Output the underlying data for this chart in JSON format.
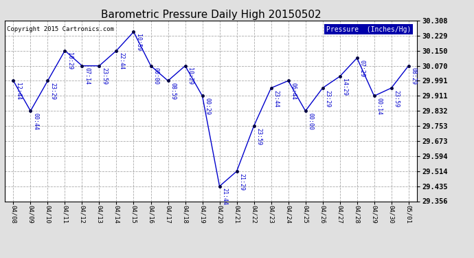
{
  "title": "Barometric Pressure Daily High 20150502",
  "copyright": "Copyright 2015 Cartronics.com",
  "legend_label": "Pressure  (Inches/Hg)",
  "dates": [
    "04/08",
    "04/09",
    "04/10",
    "04/11",
    "04/12",
    "04/13",
    "04/14",
    "04/15",
    "04/16",
    "04/17",
    "04/18",
    "04/19",
    "04/20",
    "04/21",
    "04/22",
    "04/23",
    "04/24",
    "04/25",
    "04/26",
    "04/27",
    "04/28",
    "04/29",
    "04/30",
    "05/01"
  ],
  "values": [
    29.991,
    29.832,
    29.991,
    30.15,
    30.07,
    30.07,
    30.15,
    30.249,
    30.07,
    29.991,
    30.07,
    29.911,
    29.435,
    29.514,
    29.753,
    29.953,
    29.991,
    29.832,
    29.953,
    30.014,
    30.111,
    29.911,
    29.953,
    30.07
  ],
  "annotations": [
    "12:44",
    "00:44",
    "23:29",
    "10:29",
    "07:14",
    "23:59",
    "22:44",
    "10:59",
    "00:00",
    "08:59",
    "10:29",
    "00:29",
    "21:44",
    "21:29",
    "23:59",
    "23:44",
    "06:44",
    "00:00",
    "23:29",
    "14:29",
    "07:29",
    "00:14",
    "23:59",
    "08:29"
  ],
  "ylim": [
    29.356,
    30.308
  ],
  "yticks": [
    29.356,
    29.435,
    29.514,
    29.594,
    29.673,
    29.753,
    29.832,
    29.911,
    29.991,
    30.07,
    30.15,
    30.229,
    30.308
  ],
  "line_color": "#0000cc",
  "marker_color": "#000040",
  "grid_color": "#aaaaaa",
  "bg_color": "#e0e0e0",
  "plot_bg_color": "#ffffff",
  "title_fontsize": 11,
  "annotation_fontsize": 6.0,
  "legend_bg_color": "#0000aa",
  "legend_text_color": "#ffffff",
  "copyright_fontsize": 6.5,
  "xtick_fontsize": 6.5,
  "ytick_fontsize": 7.5
}
